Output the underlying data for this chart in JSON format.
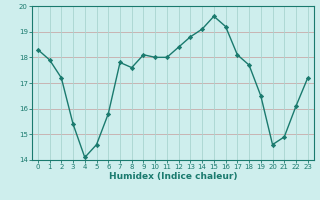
{
  "x": [
    0,
    1,
    2,
    3,
    4,
    5,
    6,
    7,
    8,
    9,
    10,
    11,
    12,
    13,
    14,
    15,
    16,
    17,
    18,
    19,
    20,
    21,
    22,
    23
  ],
  "y": [
    18.3,
    17.9,
    17.2,
    15.4,
    14.1,
    14.6,
    15.8,
    17.8,
    17.6,
    18.1,
    18.0,
    18.0,
    18.4,
    18.8,
    19.1,
    19.6,
    19.2,
    18.1,
    17.7,
    16.5,
    14.6,
    14.9,
    16.1,
    17.2
  ],
  "xlabel": "Humidex (Indice chaleur)",
  "ylim": [
    14.0,
    20.0
  ],
  "xlim_min": -0.5,
  "xlim_max": 23.5,
  "yticks": [
    14,
    15,
    16,
    17,
    18,
    19,
    20
  ],
  "xticks": [
    0,
    1,
    2,
    3,
    4,
    5,
    6,
    7,
    8,
    9,
    10,
    11,
    12,
    13,
    14,
    15,
    16,
    17,
    18,
    19,
    20,
    21,
    22,
    23
  ],
  "line_color": "#1a7a6e",
  "marker": "D",
  "marker_size": 2.2,
  "bg_color": "#ceeeed",
  "vgrid_color": "#a8d4d0",
  "hgrid_color": "#c8aaaa",
  "tick_fontsize": 5.0,
  "xlabel_fontsize": 6.5,
  "ylabel_fontsize": 6.0,
  "line_width": 1.0
}
